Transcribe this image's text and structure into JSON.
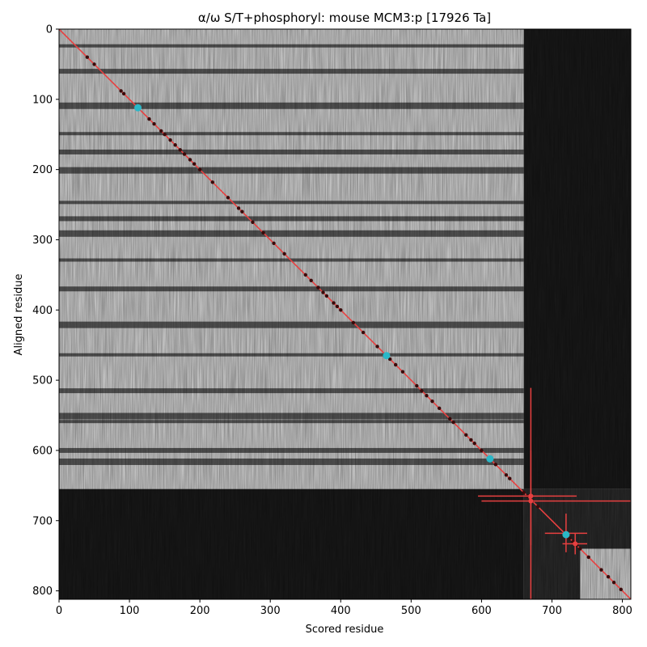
{
  "chart_data": {
    "type": "heatmap",
    "title": "α/ω S/T+phosphoryl: mouse MCM3:p [17926 Ta]",
    "xlabel": "Scored residue",
    "ylabel": "Aligned residue",
    "xlim": [
      0,
      812
    ],
    "ylim": [
      812,
      0
    ],
    "x_ticks": [
      "0",
      "100",
      "200",
      "300",
      "400",
      "500",
      "600",
      "700",
      "800"
    ],
    "y_ticks": [
      "0",
      "100",
      "200",
      "300",
      "400",
      "500",
      "600",
      "700",
      "800"
    ],
    "colormap": "grayscale",
    "grid": false,
    "background_regions": [
      {
        "x": [
          0,
          660
        ],
        "y": [
          0,
          655
        ],
        "level": "bright"
      },
      {
        "x": [
          660,
          812
        ],
        "y": [
          0,
          655
        ],
        "level": "dark"
      },
      {
        "x": [
          0,
          660
        ],
        "y": [
          655,
          812
        ],
        "level": "dark"
      },
      {
        "x": [
          660,
          812
        ],
        "y": [
          655,
          812
        ],
        "level": "medium-dark"
      },
      {
        "x": [
          740,
          812
        ],
        "y": [
          740,
          812
        ],
        "level": "bright"
      }
    ],
    "dark_bands_y": [
      25,
      60,
      108,
      150,
      175,
      200,
      248,
      270,
      290,
      330,
      370,
      420,
      465,
      515,
      550,
      560,
      600,
      615
    ],
    "diagonal_line": {
      "x": [
        0,
        812
      ],
      "y": [
        0,
        812
      ],
      "color": "#e84040"
    },
    "site_markers": [
      {
        "x": 112,
        "y": 112,
        "color": "#2ab7c7"
      },
      {
        "x": 465,
        "y": 465,
        "color": "#2ab7c7"
      },
      {
        "x": 612,
        "y": 612,
        "color": "#2ab7c7"
      },
      {
        "x": 720,
        "y": 720,
        "color": "#2ab7c7"
      }
    ],
    "diagonal_dots": [
      40,
      50,
      88,
      92,
      128,
      135,
      145,
      150,
      158,
      165,
      172,
      178,
      186,
      192,
      200,
      218,
      240,
      255,
      260,
      275,
      290,
      305,
      320,
      350,
      358,
      368,
      375,
      380,
      390,
      395,
      400,
      418,
      432,
      452,
      470,
      478,
      488,
      508,
      515,
      522,
      530,
      540,
      555,
      560,
      578,
      585,
      590,
      600,
      620,
      635,
      640,
      660,
      665,
      672,
      680,
      718,
      725,
      730,
      735,
      740,
      752,
      770,
      780,
      788,
      798
    ],
    "error_crosses": [
      {
        "x": 670,
        "y": 672,
        "x_err": [
          600,
          812
        ],
        "y_err": [
          511,
          812
        ],
        "color": "#e84040"
      },
      {
        "x": 670,
        "y": 665,
        "x_err": [
          595,
          735
        ],
        "y_err": [
          600,
          735
        ],
        "color": "#e84040"
      },
      {
        "x": 720,
        "y": 718,
        "x_err": [
          690,
          750
        ],
        "y_err": [
          690,
          745
        ],
        "color": "#e84040"
      },
      {
        "x": 733,
        "y": 733,
        "x_err": [
          715,
          750
        ],
        "y_err": [
          718,
          748
        ],
        "color": "#e84040"
      }
    ]
  }
}
